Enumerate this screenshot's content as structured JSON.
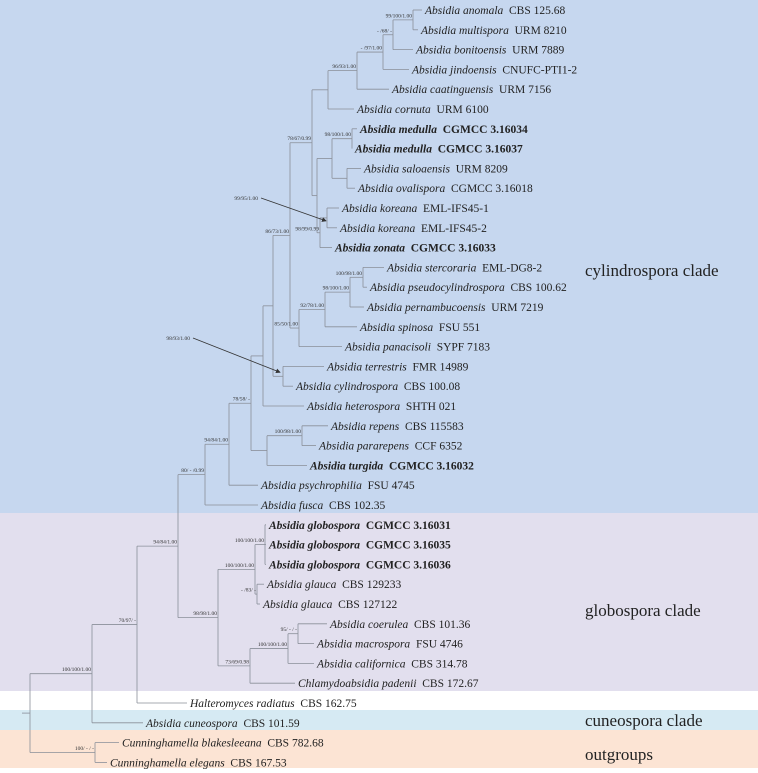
{
  "clades": {
    "cylindrospora": {
      "label": "cylindrospora clade",
      "color": "#c6d7ef"
    },
    "globospora": {
      "label": "globospora clade",
      "color": "#e2dfee"
    },
    "cuneospora": {
      "label": "cuneospora clade",
      "color": "#d6eaf3"
    },
    "outgroups": {
      "label": "outgroups",
      "color": "#fce4d4"
    }
  },
  "taxa": [
    {
      "species": "Absidia anomala",
      "strain": "CBS 125.68",
      "bold": false
    },
    {
      "species": "Absidia multispora",
      "strain": "URM 8210",
      "bold": false
    },
    {
      "species": "Absidia bonitoensis",
      "strain": "URM 7889",
      "bold": false
    },
    {
      "species": "Absidia jindoensis",
      "strain": "CNUFC-PTI1-2",
      "bold": false
    },
    {
      "species": "Absidia caatinguensis",
      "strain": "URM 7156",
      "bold": false
    },
    {
      "species": "Absidia cornuta",
      "strain": "URM 6100",
      "bold": false
    },
    {
      "species": "Absidia medulla",
      "strain": "CGMCC 3.16034",
      "bold": true
    },
    {
      "species": "Absidia medulla",
      "strain": "CGMCC 3.16037",
      "bold": true
    },
    {
      "species": "Absidia saloaensis",
      "strain": "URM 8209",
      "bold": false
    },
    {
      "species": "Absidia ovalispora",
      "strain": "CGMCC 3.16018",
      "bold": false
    },
    {
      "species": "Absidia koreana",
      "strain": "EML-IFS45-1",
      "bold": false
    },
    {
      "species": "Absidia koreana",
      "strain": "EML-IFS45-2",
      "bold": false
    },
    {
      "species": "Absidia zonata",
      "strain": "CGMCC 3.16033",
      "bold": true
    },
    {
      "species": "Absidia stercoraria",
      "strain": "EML-DG8-2",
      "bold": false
    },
    {
      "species": "Absidia pseudocylindrospora",
      "strain": "CBS 100.62",
      "bold": false
    },
    {
      "species": "Absidia pernambucoensis",
      "strain": "URM 7219",
      "bold": false
    },
    {
      "species": "Absidia spinosa",
      "strain": "FSU 551",
      "bold": false
    },
    {
      "species": "Absidia panacisoli",
      "strain": "SYPF 7183",
      "bold": false
    },
    {
      "species": "Absidia terrestris",
      "strain": "FMR 14989",
      "bold": false
    },
    {
      "species": "Absidia cylindrospora",
      "strain": "CBS 100.08",
      "bold": false
    },
    {
      "species": "Absidia heterospora",
      "strain": "SHTH 021",
      "bold": false
    },
    {
      "species": "Absidia repens",
      "strain": "CBS 115583",
      "bold": false
    },
    {
      "species": "Absidia pararepens",
      "strain": "CCF 6352",
      "bold": false
    },
    {
      "species": "Absidia turgida",
      "strain": "CGMCC 3.16032",
      "bold": true
    },
    {
      "species": "Absidia psychrophilia",
      "strain": "FSU 4745",
      "bold": false
    },
    {
      "species": "Absidia fusca",
      "strain": "CBS 102.35",
      "bold": false
    },
    {
      "species": "Absidia globospora",
      "strain": "CGMCC 3.16031",
      "bold": true
    },
    {
      "species": "Absidia globospora",
      "strain": "CGMCC 3.16035",
      "bold": true
    },
    {
      "species": "Absidia globospora",
      "strain": "CGMCC 3.16036",
      "bold": true
    },
    {
      "species": "Absidia glauca",
      "strain": "CBS 129233",
      "bold": false
    },
    {
      "species": "Absidia glauca",
      "strain": "CBS 127122",
      "bold": false
    },
    {
      "species": "Absidia coerulea",
      "strain": "CBS 101.36",
      "bold": false
    },
    {
      "species": "Absidia macrospora",
      "strain": "FSU 4746",
      "bold": false
    },
    {
      "species": "Absidia californica",
      "strain": "CBS 314.78",
      "bold": false
    },
    {
      "species": "Chlamydoabsidia padenii",
      "strain": "CBS 172.67",
      "bold": false
    },
    {
      "species": "Halteromyces radiatus",
      "strain": "CBS 162.75",
      "bold": false
    },
    {
      "species": "Absidia cuneospora",
      "strain": "CBS 101.59",
      "bold": false
    },
    {
      "species": "Cunninghamella blakesleeana",
      "strain": "CBS 782.68",
      "bold": false
    },
    {
      "species": "Cunninghamella elegans",
      "strain": "CBS 167.53",
      "bold": false
    }
  ],
  "support": {
    "a": "100/100/1.00",
    "out": "100/ - / -",
    "b": "70/97/ -",
    "c": "94/84/1.00",
    "n80": "80/ - /0.99",
    "n94b": "94/84/1.00",
    "n78": "78/58/ -",
    "n86": "86/73/1.00",
    "n78_67": "78/67/0.99",
    "n96": "96/93/1.00",
    "n97": "- /97/1.00",
    "n68": "- /68/ -",
    "n99": "99/100/1.00",
    "nmed": "98/100/1.00",
    "nzon": "98/99/0.99",
    "nkor": "99/95/1.00",
    "n85": "85/50/1.00",
    "n92": "92/78/1.00",
    "n98_100": "98/100/1.00",
    "n100_98": "100/98/1.00",
    "nter": "98/93/1.00",
    "nrep": "100/98/1.00",
    "nglobc": "98/98/1.00",
    "nglob": "100/100/1.00",
    "nglob3": "100/100/1.00",
    "nglauca": "- /83/ -",
    "n73": "73/69/0.98",
    "ncal": "100/100/1.00",
    "n95": "95/ - / -"
  }
}
